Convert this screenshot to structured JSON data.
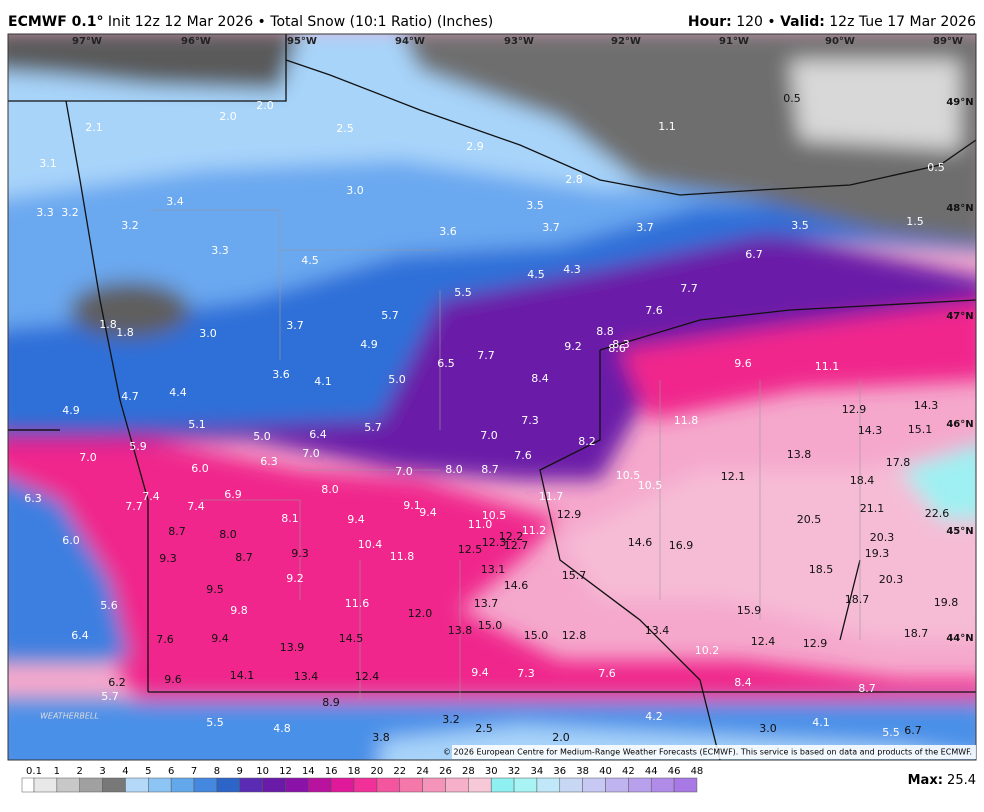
{
  "header": {
    "model": "ECMWF 0.1°",
    "title": "Init 12z 12 Mar 2026 • Total Snow (10:1 Ratio) (Inches)",
    "hour_label": "Hour:",
    "hour": "120 •",
    "valid_label": "Valid:",
    "valid": "12z Tue 17 Mar 2026"
  },
  "map": {
    "longitudes": [
      "97°W",
      "96°W",
      "95°W",
      "94°W",
      "93°W",
      "92°W",
      "91°W",
      "90°W",
      "89°W"
    ],
    "latitudes": [
      "49°N",
      "48°N",
      "47°N",
      "46°N",
      "45°N",
      "44°N"
    ],
    "labels": [
      "2.1",
      "2.0",
      "2.0",
      "2.5",
      "2.9",
      "2.8",
      "1.1",
      "0.5",
      "0.5",
      "1.5",
      "3.1",
      "3.3",
      "3.2",
      "3.4",
      "3.2",
      "3.0",
      "3.5",
      "3.6",
      "3.7",
      "3.7",
      "3.5",
      "3.3",
      "4.5",
      "4.5",
      "4.3",
      "5.5",
      "6.7",
      "7.7",
      "7.6",
      "1.8",
      "1.8",
      "3.0",
      "3.7",
      "5.7",
      "4.9",
      "8.8",
      "9.2",
      "8.3",
      "8.6",
      "9.6",
      "11.1",
      "7.7",
      "6.5",
      "5.0",
      "3.6",
      "4.1",
      "8.4",
      "4.4",
      "4.7",
      "4.9",
      "12.9",
      "14.3",
      "11.8",
      "5.1",
      "5.7",
      "7.3",
      "14.3",
      "15.1",
      "5.0",
      "6.4",
      "7.0",
      "5.9",
      "8.2",
      "13.8",
      "7.0",
      "7.0",
      "7.6",
      "17.8",
      "6.0",
      "6.3",
      "7.0",
      "8.0",
      "8.7",
      "10.5",
      "12.1",
      "10.5",
      "18.4",
      "6.3",
      "8.0",
      "6.9",
      "7.4",
      "11.7",
      "7.7",
      "7.4",
      "9.1",
      "9.4",
      "10.5",
      "12.9",
      "21.1",
      "22.6",
      "20.5",
      "8.1",
      "9.4",
      "11.0",
      "8.7",
      "8.0",
      "12.2",
      "11.2",
      "6.0",
      "10.4",
      "12.3",
      "12.7",
      "14.6",
      "16.9",
      "20.3",
      "12.5",
      "9.3",
      "8.7",
      "11.8",
      "19.3",
      "9.3",
      "13.1",
      "18.5",
      "15.7",
      "9.2",
      "20.3",
      "9.5",
      "14.6",
      "18.7",
      "19.8",
      "5.6",
      "11.6",
      "13.7",
      "9.8",
      "12.0",
      "15.9",
      "15.0",
      "13.8",
      "13.4",
      "6.4",
      "7.6",
      "9.4",
      "14.5",
      "15.0",
      "12.8",
      "18.7",
      "12.4",
      "12.9",
      "13.9",
      "10.2",
      "9.6",
      "14.1",
      "13.4",
      "12.4",
      "9.4",
      "7.3",
      "7.6",
      "8.4",
      "6.2",
      "8.7",
      "5.7",
      "8.9",
      "5.5",
      "4.8",
      "3.2",
      "2.5",
      "4.2",
      "3.8",
      "2.0",
      "3.0",
      "4.1",
      "5.5",
      "6.7"
    ],
    "copyright": "© 2026 European Centre for Medium-Range Weather Forecasts (ECMWF). This service is based on data and products of the ECMWF.",
    "brand": "WEATHERBELL"
  },
  "legend": {
    "ticks": [
      "0.1",
      "1",
      "2",
      "3",
      "4",
      "5",
      "6",
      "7",
      "8",
      "9",
      "10",
      "12",
      "14",
      "16",
      "18",
      "20",
      "22",
      "24",
      "26",
      "28",
      "30",
      "32",
      "34",
      "36",
      "38",
      "40",
      "42",
      "44",
      "46",
      "48"
    ],
    "colors": [
      "#e8e8e8",
      "#c8c8c8",
      "#a0a0a0",
      "#787878",
      "#b4d8f8",
      "#8cc4f4",
      "#64a8ec",
      "#4488e0",
      "#2c64c8",
      "#5a2cb4",
      "#6a1aa8",
      "#8a12a8",
      "#b8129e",
      "#e0189a",
      "#f2309a",
      "#f4559f",
      "#f478aa",
      "#f594bb",
      "#f6b0c9",
      "#f7c8d8",
      "#8ef0f0",
      "#a8f4f4",
      "#c0e8f8",
      "#c8d8f4",
      "#c8c8f4",
      "#c0b4f0",
      "#b8a0ec",
      "#b08ce8",
      "#a878e4"
    ],
    "max_label": "Max:",
    "max_value": "25.4"
  }
}
